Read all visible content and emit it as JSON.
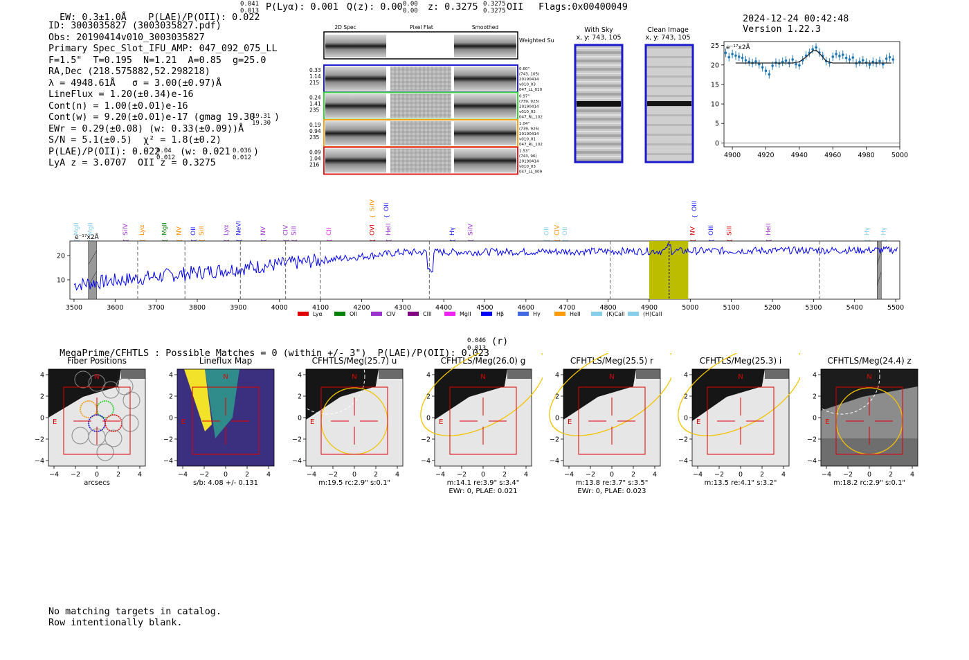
{
  "header": {
    "ew": "EW: 0.3±1.0Å",
    "plae_lbl": "P(LAE)/P(OII): 0.022",
    "plae_sup": "0.041",
    "plae_sub": "0.013",
    "plya": "P(Lyα): 0.001",
    "qz_lbl": "Q(z): 0.00",
    "qz_sup": "0.00",
    "qz_sub": "0.00",
    "z_lbl": "z: 0.3275",
    "z_sup": "0.3275",
    "z_sub": "0.3275",
    "z_line": "OII",
    "flags": "Flags:0x00400049",
    "timestamp": "2024-12-24 00:42:48",
    "version": "Version 1.22.3"
  },
  "info": {
    "id": "ID: 3003035827 (3003035827.pdf)",
    "obs": "Obs: 20190414v010_3003035827",
    "primary": "Primary Spec_Slot_IFU_AMP: 047_092_075_LL",
    "fparams": "F=1.5\"  T=0.195  N=1.21  A=0.85  g=25.0",
    "radec": "RA,Dec (218.575882,52.298218)",
    "lambda": "λ = 4948.61Å   σ = 3.00(±0.97)Å",
    "lineflux": "LineFlux = 1.20(±0.34)e-16",
    "contn": "Cont(n) = 1.00(±0.01)e-16",
    "contw": "Cont(w) = 9.20(±0.01)e-17 (gmag 19.30",
    "contw_sup": "19.31",
    "contw_sub": "19.30",
    "contw_end": ")",
    "ewr": "EWr = 0.29(±0.08) (w: 0.33(±0.09))Å",
    "sn": "S/N = 5.1(±0.5)  χ² = 1.8(±0.2)",
    "plae2": "P(LAE)/P(OII): 0.022",
    "plae2_sup": "0.04",
    "plae2_sub": "0.012",
    "plae2_w": "(w: 0.021",
    "plae2_w_sup": "0.036",
    "plae2_w_sub": "0.012",
    "plae2_end": ")",
    "lya": "LyA z = 3.0707  OII z = 0.3275"
  },
  "cutouts": {
    "col_headers": [
      "2D Spec",
      "Pixel Flat",
      "Smoothed"
    ],
    "weighted_sum": "Weighted Sum",
    "rows": [
      {
        "left": [
          "0.33",
          "1.14",
          "215"
        ],
        "right": [
          "0.60\"",
          "(743, 105)",
          "20190414",
          "v010_03",
          "047_LL_010"
        ],
        "color": "#1f1fd0"
      },
      {
        "left": [
          "0.24",
          "1.41",
          "235"
        ],
        "right": [
          "0.97\"",
          "(739, 925)",
          "20190414",
          "v010_02",
          "047_RL_102"
        ],
        "color": "#3ad03a"
      },
      {
        "left": [
          "0.19",
          "0.94",
          "235"
        ],
        "right": [
          "1.04\"",
          "(739, 925)",
          "20190414",
          "v010_01",
          "047_RL_102"
        ],
        "color": "#f2a020"
      },
      {
        "left": [
          "0.09",
          "1.04",
          "216"
        ],
        "right": [
          "1.53\"",
          "(743, 96)",
          "20190414",
          "v010_03",
          "047_LL_009"
        ],
        "color": "#e02020"
      }
    ],
    "with_sky": "With Sky",
    "with_sky_xy": "x, y: 743, 105",
    "clean": "Clean Image",
    "clean_xy": "x, y: 743, 105"
  },
  "chart_data": [
    {
      "type": "line",
      "title": "",
      "unit_label": "e⁻¹⁷x2Å",
      "xlim": [
        4895,
        5000
      ],
      "ylim": [
        -1,
        26
      ],
      "xticks": [
        4900,
        4920,
        4940,
        4960,
        4980,
        5000
      ],
      "yticks": [
        0,
        5,
        10,
        15,
        20,
        25
      ],
      "series": [
        {
          "x": [
            4896,
            4898,
            4900,
            4902,
            4904,
            4906,
            4908,
            4910,
            4912,
            4914,
            4916,
            4918,
            4920,
            4922,
            4924,
            4926,
            4928,
            4930,
            4932,
            4934,
            4936,
            4938,
            4940,
            4942,
            4944,
            4946,
            4948,
            4950,
            4952,
            4954,
            4956,
            4958,
            4960,
            4962,
            4964,
            4966,
            4968,
            4970,
            4972,
            4974,
            4976,
            4978,
            4980,
            4982,
            4984,
            4986,
            4988,
            4990,
            4992,
            4994,
            4996
          ],
          "values": [
            23.1,
            22.0,
            22.8,
            22.4,
            22.1,
            21.8,
            21.2,
            20.8,
            20.5,
            20.9,
            20.2,
            19.4,
            18.5,
            17.6,
            19.8,
            20.6,
            20.4,
            20.8,
            21.1,
            20.5,
            21.4,
            20.2,
            19.9,
            21.2,
            22.4,
            23.1,
            24.0,
            24.5,
            23.2,
            22.3,
            21.0,
            20.6,
            22.1,
            22.8,
            22.3,
            22.6,
            21.8,
            21.4,
            21.9,
            20.4,
            20.8,
            21.2,
            20.6,
            20.1,
            20.8,
            20.5,
            21.0,
            20.2,
            21.6,
            22.0,
            21.4
          ]
        },
        {
          "name_hidden": "fit",
          "x": [
            4902,
            4936,
            4940,
            4944,
            4948,
            4950,
            4952,
            4956,
            4960,
            4995
          ],
          "values": [
            20.5,
            20.5,
            20.8,
            22.0,
            23.6,
            23.8,
            23.0,
            21.0,
            20.5,
            20.5
          ]
        }
      ]
    },
    {
      "type": "line",
      "unit_label": "e⁻¹⁷x2Å",
      "xlim": [
        3490,
        5510
      ],
      "ylim": [
        2,
        26
      ],
      "xticks": [
        3500,
        3600,
        3700,
        3800,
        3900,
        4000,
        4100,
        4200,
        4300,
        4400,
        4500,
        4600,
        4700,
        4800,
        4900,
        5000,
        5100,
        5200,
        5300,
        5400,
        5500
      ],
      "yticks": [
        10,
        20
      ],
      "highlight_band": [
        4900,
        4995
      ],
      "highlight_center": 4948.6,
      "dashed_lines": [
        3655,
        3770,
        3905,
        4015,
        4100,
        4365,
        4805,
        5315
      ],
      "hatched_regions": [
        [
          3535,
          3555
        ],
        [
          5455,
          5465
        ]
      ],
      "line_labels": [
        {
          "label": "MgII",
          "x": 3505,
          "color": "#87ceeb"
        },
        {
          "label": "MgII",
          "x": 3540,
          "color": "#87ceeb"
        },
        {
          "label": "SiIV",
          "x": 3625,
          "color": "#9932cc"
        },
        {
          "label": "Lyα",
          "x": 3665,
          "color": "#ff8c00"
        },
        {
          "label": "MgII",
          "x": 3720,
          "color": "#008000"
        },
        {
          "label": "NV",
          "x": 3755,
          "color": "#ff8c00"
        },
        {
          "label": "OII",
          "x": 3790,
          "color": "#1a1aff"
        },
        {
          "label": "SiII",
          "x": 3810,
          "color": "#ff8c00"
        },
        {
          "label": "Lyα",
          "x": 3870,
          "color": "#9932cc"
        },
        {
          "label": "NeVI",
          "x": 3900,
          "color": "#1a1aff"
        },
        {
          "label": "NV",
          "x": 3960,
          "color": "#9932cc"
        },
        {
          "label": "CIV",
          "x": 4015,
          "color": "#9932cc"
        },
        {
          "label": "SiII",
          "x": 4035,
          "color": "#9932cc"
        },
        {
          "label": "CII",
          "x": 4120,
          "color": "#ee22ee"
        },
        {
          "label": "OVI",
          "x": 4225,
          "color": "#e00000"
        },
        {
          "label": "SiIV",
          "x": 4225,
          "color": "#ff8c00",
          "raised": true
        },
        {
          "label": "OII",
          "x": 4260,
          "color": "#1a1aff",
          "raised": true
        },
        {
          "label": "HeII",
          "x": 4265,
          "color": "#9932cc"
        },
        {
          "label": "Hγ",
          "x": 4420,
          "color": "#1a1aff"
        },
        {
          "label": "SiIV",
          "x": 4465,
          "color": "#9932cc"
        },
        {
          "label": "OII",
          "x": 4650,
          "color": "#87ceeb"
        },
        {
          "label": "CIV",
          "x": 4675,
          "color": "#ff8c00"
        },
        {
          "label": "OII",
          "x": 4695,
          "color": "#87ceeb"
        },
        {
          "label": "OIII",
          "x": 5010,
          "color": "#1a1aff",
          "raised": true
        },
        {
          "label": "NV",
          "x": 5005,
          "color": "#e00000"
        },
        {
          "label": "OIII",
          "x": 5050,
          "color": "#1a1aff"
        },
        {
          "label": "SiII",
          "x": 5095,
          "color": "#e00000"
        },
        {
          "label": "HeII",
          "x": 5190,
          "color": "#9932cc"
        },
        {
          "label": "Hγ",
          "x": 5430,
          "color": "#87ceeb"
        },
        {
          "label": "Hγ",
          "x": 5470,
          "color": "#87ceeb"
        }
      ],
      "legend": [
        {
          "label": "Lyα",
          "color": "#e00000"
        },
        {
          "label": "OII",
          "color": "#008000"
        },
        {
          "label": "CIV",
          "color": "#9932cc"
        },
        {
          "label": "CIII",
          "color": "#800080"
        },
        {
          "label": "MgII",
          "color": "#ee22ee"
        },
        {
          "label": "Hβ",
          "color": "#0000ff"
        },
        {
          "label": "Hγ",
          "color": "#4169e1"
        },
        {
          "label": "HeII",
          "color": "#ff9900"
        },
        {
          "label": "(K)CaII",
          "color": "#87ceeb"
        },
        {
          "label": "(H)CaII",
          "color": "#87ceeb"
        }
      ]
    }
  ],
  "megaprime": {
    "text": "MegaPrime/CFHTLS : Possible Matches = 0 (within +/- 3\")  P(LAE)/P(OII): 0.023",
    "sup": "0.046",
    "sub": "0.013",
    "end": " (r)"
  },
  "panels": [
    {
      "title": "Fiber Positions",
      "foot1": "arcsecs",
      "foot2": ""
    },
    {
      "title": "Lineflux Map",
      "foot1": "s/b: 4.08 +/- 0.131",
      "foot2": ""
    },
    {
      "title": "CFHTLS/Meg(25.7) u",
      "foot1": "m:19.5 rc:2.9\"  s:0.1\"",
      "foot2": ""
    },
    {
      "title": "CFHTLS/Meg(26.0) g",
      "foot1": "m:14.1  re:3.9\"  s:3.4\"",
      "foot2": "EWr: 0, PLAE: 0.021"
    },
    {
      "title": "CFHTLS/Meg(25.5) r",
      "foot1": "m:13.8  re:3.7\"  s:3.5\"",
      "foot2": "EWr: 0, PLAE: 0.023"
    },
    {
      "title": "CFHTLS/Meg(25.3) i",
      "foot1": "m:13.5  re:4.1\"  s:3.2\"",
      "foot2": ""
    },
    {
      "title": "CFHTLS/Meg(24.4) z",
      "foot1": "m:18.2 rc:2.9\"  s:0.1\"",
      "foot2": ""
    }
  ],
  "panel_axes": {
    "xticks": [
      "−4",
      "−2",
      "0",
      "2",
      "4"
    ],
    "yticks": [
      "4",
      "2",
      "0",
      "−2",
      "−4"
    ],
    "north": "N",
    "east": "E"
  },
  "footer": {
    "line1": "No matching targets in catalog.",
    "line2": "Row intentionally blank."
  }
}
